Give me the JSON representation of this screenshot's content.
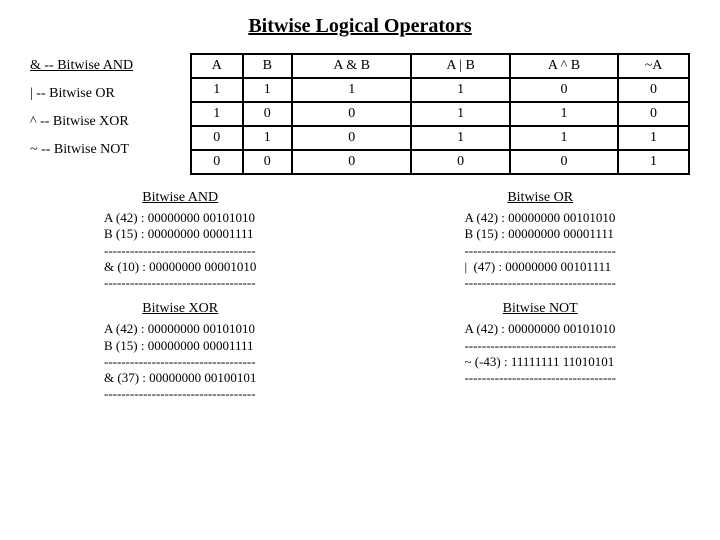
{
  "title": "Bitwise Logical Operators",
  "legend": {
    "and": "& -- Bitwise AND",
    "or": "|   -- Bitwise OR",
    "xor": "^  -- Bitwise XOR",
    "not": "~  -- Bitwise NOT"
  },
  "table": {
    "headers": [
      "A",
      "B",
      "A & B",
      "A | B",
      "A ^ B",
      "~A"
    ],
    "rows": [
      [
        "1",
        "1",
        "1",
        "1",
        "0",
        "0"
      ],
      [
        "1",
        "0",
        "0",
        "1",
        "1",
        "0"
      ],
      [
        "0",
        "1",
        "0",
        "1",
        "1",
        "1"
      ],
      [
        "0",
        "0",
        "0",
        "0",
        "0",
        "1"
      ]
    ]
  },
  "examples": {
    "and": {
      "title": "Bitwise AND",
      "l1": "A (42) : 00000000 00101010",
      "l2": "B (15) : 00000000 00001111",
      "sep": "-----------------------------------",
      "l3": "& (10) : 00000000 00001010",
      "sep2": "-----------------------------------"
    },
    "or": {
      "title": "Bitwise OR",
      "l1": "A (42) : 00000000 00101010",
      "l2": "B (15) : 00000000 00001111",
      "sep": "-----------------------------------",
      "l3": "|  (47) : 00000000 00101111",
      "sep2": "-----------------------------------"
    },
    "xor": {
      "title": "Bitwise XOR",
      "l1": "A (42) : 00000000 00101010",
      "l2": "B (15) : 00000000 00001111",
      "sep": "-----------------------------------",
      "l3": "& (37) : 00000000 00100101",
      "sep2": "-----------------------------------"
    },
    "not": {
      "title": "Bitwise NOT",
      "l1": "A (42) : 00000000 00101010",
      "sep": "-----------------------------------",
      "l2": "~ (-43) : 11111111 11010101",
      "sep2": "-----------------------------------"
    }
  }
}
